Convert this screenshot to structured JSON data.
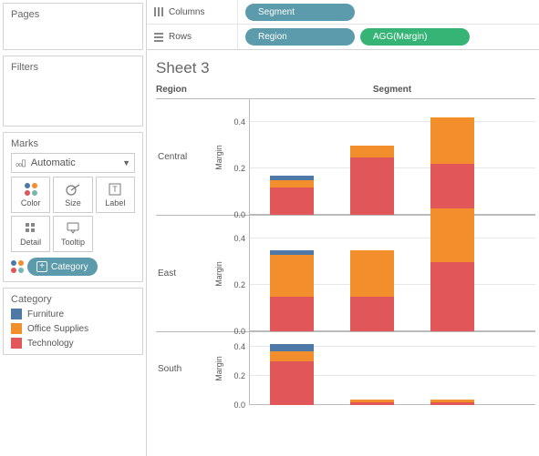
{
  "colors": {
    "furniture": "#4e79a7",
    "office": "#f28e2b",
    "technology": "#e15759",
    "dim_pill": "#5b9bab",
    "agg_pill": "#36b475",
    "border": "#d4d4d4"
  },
  "sidebar": {
    "pages": {
      "title": "Pages"
    },
    "filters": {
      "title": "Filters"
    },
    "marks": {
      "title": "Marks",
      "type_label": "Automatic",
      "buttons": [
        {
          "name": "color",
          "label": "Color"
        },
        {
          "name": "size",
          "label": "Size"
        },
        {
          "name": "label",
          "label": "Label"
        },
        {
          "name": "detail",
          "label": "Detail"
        },
        {
          "name": "tooltip",
          "label": "Tooltip"
        }
      ],
      "color_pill": "Category"
    },
    "legend": {
      "title": "Category",
      "items": [
        {
          "label": "Furniture",
          "color": "#4e79a7"
        },
        {
          "label": "Office Supplies",
          "color": "#f28e2b"
        },
        {
          "label": "Technology",
          "color": "#e15759"
        }
      ]
    }
  },
  "shelves": {
    "columns": {
      "label": "Columns",
      "pills": [
        {
          "label": "Segment",
          "color": "#5b9bab"
        }
      ]
    },
    "rows": {
      "label": "Rows",
      "pills": [
        {
          "label": "Region",
          "color": "#5b9bab"
        },
        {
          "label": "AGG(Margin)",
          "color": "#36b475"
        }
      ]
    }
  },
  "sheet": {
    "title": "Sheet 3",
    "row_header": "Region",
    "col_header": "Segment",
    "y_axis_label": "Margin",
    "y_ticks": [
      0.0,
      0.2,
      0.4
    ],
    "y_max": 0.5,
    "rows": [
      {
        "label": "Central",
        "bars": [
          {
            "segments": [
              {
                "cat": "technology",
                "v": 0.12
              },
              {
                "cat": "office",
                "v": 0.03
              },
              {
                "cat": "furniture",
                "v": 0.02
              }
            ]
          },
          {
            "segments": [
              {
                "cat": "technology",
                "v": 0.25
              },
              {
                "cat": "office",
                "v": 0.05
              }
            ]
          },
          {
            "segments": [
              {
                "cat": "technology",
                "v": 0.22
              },
              {
                "cat": "office",
                "v": 0.2
              }
            ]
          }
        ]
      },
      {
        "label": "East",
        "bars": [
          {
            "segments": [
              {
                "cat": "technology",
                "v": 0.15
              },
              {
                "cat": "office",
                "v": 0.18
              },
              {
                "cat": "furniture",
                "v": 0.02
              }
            ]
          },
          {
            "segments": [
              {
                "cat": "technology",
                "v": 0.15
              },
              {
                "cat": "office",
                "v": 0.2
              }
            ]
          },
          {
            "segments": [
              {
                "cat": "technology",
                "v": 0.3
              },
              {
                "cat": "office",
                "v": 0.23
              }
            ]
          }
        ]
      },
      {
        "label": "South",
        "bars": [
          {
            "segments": [
              {
                "cat": "technology",
                "v": 0.3
              },
              {
                "cat": "office",
                "v": 0.07
              },
              {
                "cat": "furniture",
                "v": 0.05
              }
            ]
          },
          {
            "segments": [
              {
                "cat": "technology",
                "v": 0.02
              },
              {
                "cat": "office",
                "v": 0.02
              }
            ]
          },
          {
            "segments": [
              {
                "cat": "technology",
                "v": 0.02
              },
              {
                "cat": "office",
                "v": 0.02
              }
            ]
          }
        ]
      }
    ]
  }
}
